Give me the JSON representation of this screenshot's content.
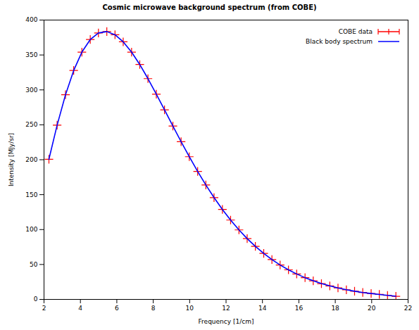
{
  "chart_data": {
    "type": "line",
    "title": "Cosmic microwave background spectrum (from COBE)",
    "x_label": "Frequency [1/cm]",
    "y_label": "Intensity [MJy/sr]",
    "x": [
      2.27,
      2.72,
      3.18,
      3.63,
      4.08,
      4.54,
      4.99,
      5.45,
      5.9,
      6.35,
      6.81,
      7.26,
      7.71,
      8.17,
      8.62,
      9.08,
      9.53,
      9.98,
      10.44,
      10.89,
      11.34,
      11.8,
      12.25,
      12.71,
      13.16,
      13.61,
      14.07,
      14.52,
      14.97,
      15.43,
      15.88,
      16.34,
      16.79,
      17.24,
      17.7,
      18.15,
      18.61,
      19.06,
      19.51,
      19.97,
      20.42,
      20.87,
      21.33
    ],
    "series": [
      {
        "name": "COBE data",
        "color": "#ff0000",
        "type": "scatter",
        "marker": "plus",
        "values": [
          200.7,
          249.5,
          293.0,
          327.8,
          354.1,
          372.1,
          381.5,
          383.5,
          378.9,
          368.8,
          354.1,
          336.3,
          316.1,
          293.9,
          271.4,
          248.2,
          225.9,
          204.3,
          183.3,
          163.8,
          145.8,
          128.8,
          113.6,
          99.5,
          87.0,
          75.9,
          65.8,
          57.0,
          49.2,
          42.3,
          36.4,
          31.1,
          26.6,
          22.6,
          19.3,
          16.4,
          13.8,
          11.7,
          9.9,
          8.4,
          7.1,
          5.8,
          4.5
        ]
      },
      {
        "name": "Black body spectrum",
        "color": "#0000ff",
        "type": "line",
        "values": [
          200.7,
          249.5,
          293.0,
          327.8,
          354.1,
          372.1,
          381.5,
          383.5,
          378.9,
          368.8,
          354.1,
          336.3,
          316.1,
          293.9,
          271.4,
          248.2,
          225.9,
          204.3,
          183.3,
          163.8,
          145.8,
          128.8,
          113.6,
          99.5,
          87.0,
          75.9,
          65.8,
          57.0,
          49.2,
          42.3,
          36.4,
          31.1,
          26.6,
          22.6,
          19.3,
          16.4,
          13.8,
          11.7,
          9.9,
          8.4,
          7.1,
          5.8,
          4.5
        ]
      }
    ],
    "xlim": [
      2,
      22
    ],
    "xticks": [
      2,
      4,
      6,
      8,
      10,
      12,
      14,
      16,
      18,
      20,
      22
    ],
    "ylim": [
      0,
      400
    ],
    "yticks": [
      0,
      50,
      100,
      150,
      200,
      250,
      300,
      350,
      400
    ],
    "grid": false,
    "legend": "upper right"
  }
}
